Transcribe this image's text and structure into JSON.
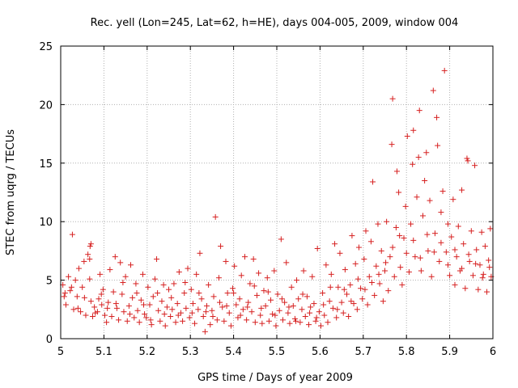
{
  "chart_data": {
    "type": "scatter",
    "title": "Rec. yell (Lon=245, Lat=62, h=HE), days 004-005, 2009, window 004",
    "xlabel": "GPS time / Days of year 2009",
    "ylabel": "STEC from uqrg / TECUs",
    "xlim": [
      5,
      6
    ],
    "ylim": [
      0,
      25
    ],
    "xticks": [
      "5",
      "5.1",
      "5.2",
      "5.3",
      "5.4",
      "5.5",
      "5.6",
      "5.7",
      "5.8",
      "5.9",
      "6"
    ],
    "yticks": [
      "0",
      "5",
      "10",
      "15",
      "20",
      "25"
    ],
    "grid": true,
    "marker": "+",
    "color": "#d62020",
    "series": [
      {
        "values": [
          [
            5.005,
            4.6
          ],
          [
            5.008,
            3.6
          ],
          [
            5.012,
            2.9
          ],
          [
            5.018,
            5.3
          ],
          [
            5.022,
            4.1
          ],
          [
            5.027,
            8.9
          ],
          [
            5.03,
            2.5
          ],
          [
            5.034,
            5.0
          ],
          [
            5.038,
            3.6
          ],
          [
            5.042,
            6.0
          ],
          [
            5.046,
            2.3
          ],
          [
            5.05,
            4.4
          ],
          [
            5.054,
            6.6
          ],
          [
            5.058,
            2.0
          ],
          [
            5.063,
            7.2
          ],
          [
            5.067,
            5.1
          ],
          [
            5.07,
            3.2
          ],
          [
            5.074,
            1.9
          ],
          [
            5.078,
            2.7
          ],
          [
            5.067,
            6.8
          ],
          [
            5.068,
            7.9
          ],
          [
            5.07,
            8.1
          ],
          [
            5.085,
            2.3
          ],
          [
            5.088,
            3.4
          ],
          [
            5.091,
            5.5
          ],
          [
            5.095,
            2.9
          ],
          [
            5.098,
            4.2
          ],
          [
            5.102,
            2.0
          ],
          [
            5.106,
            1.4
          ],
          [
            5.11,
            3.1
          ],
          [
            5.114,
            5.9
          ],
          [
            5.118,
            1.9
          ],
          [
            5.122,
            4.0
          ],
          [
            5.126,
            7.0
          ],
          [
            5.13,
            2.6
          ],
          [
            5.134,
            1.6
          ],
          [
            5.138,
            6.5
          ],
          [
            5.142,
            3.8
          ],
          [
            5.146,
            2.3
          ],
          [
            5.15,
            5.3
          ],
          [
            5.154,
            1.5
          ],
          [
            5.158,
            2.8
          ],
          [
            5.162,
            6.3
          ],
          [
            5.166,
            3.5
          ],
          [
            5.17,
            1.8
          ],
          [
            5.174,
            4.7
          ],
          [
            5.178,
            2.4
          ],
          [
            5.182,
            1.4
          ],
          [
            5.186,
            3.3
          ],
          [
            5.19,
            5.5
          ],
          [
            5.194,
            2.1
          ],
          [
            5.198,
            1.8
          ],
          [
            5.202,
            4.4
          ],
          [
            5.206,
            2.9
          ],
          [
            5.21,
            1.2
          ],
          [
            5.214,
            3.6
          ],
          [
            5.218,
            5.1
          ],
          [
            5.222,
            6.8
          ],
          [
            5.226,
            2.4
          ],
          [
            5.23,
            1.5
          ],
          [
            5.234,
            3.2
          ],
          [
            5.238,
            4.6
          ],
          [
            5.242,
            1.1
          ],
          [
            5.246,
            2.7
          ],
          [
            5.25,
            4.2
          ],
          [
            5.254,
            1.9
          ],
          [
            5.258,
            2.5
          ],
          [
            5.262,
            4.7
          ],
          [
            5.266,
            1.4
          ],
          [
            5.27,
            3.0
          ],
          [
            5.274,
            5.7
          ],
          [
            5.278,
            2.2
          ],
          [
            5.282,
            1.5
          ],
          [
            5.286,
            3.9
          ],
          [
            5.29,
            2.6
          ],
          [
            5.294,
            6.0
          ],
          [
            5.298,
            1.8
          ],
          [
            5.302,
            4.2
          ],
          [
            5.306,
            3.0
          ],
          [
            5.31,
            1.3
          ],
          [
            5.314,
            5.5
          ],
          [
            5.318,
            2.5
          ],
          [
            5.322,
            7.3
          ],
          [
            5.326,
            3.4
          ],
          [
            5.33,
            1.9
          ],
          [
            5.334,
            0.6
          ],
          [
            5.338,
            2.8
          ],
          [
            5.342,
            4.6
          ],
          [
            5.346,
            1.2
          ],
          [
            5.35,
            2.4
          ],
          [
            5.354,
            3.6
          ],
          [
            5.358,
            10.4
          ],
          [
            5.362,
            1.6
          ],
          [
            5.366,
            5.2
          ],
          [
            5.37,
            7.9
          ],
          [
            5.374,
            2.7
          ],
          [
            5.378,
            1.5
          ],
          [
            5.382,
            6.6
          ],
          [
            5.386,
            3.9
          ],
          [
            5.39,
            2.2
          ],
          [
            5.394,
            1.1
          ],
          [
            5.398,
            4.3
          ],
          [
            5.402,
            6.2
          ],
          [
            5.406,
            2.9
          ],
          [
            5.41,
            1.8
          ],
          [
            5.414,
            3.4
          ],
          [
            5.418,
            5.4
          ],
          [
            5.422,
            2.5
          ],
          [
            5.426,
            7.0
          ],
          [
            5.43,
            1.6
          ],
          [
            5.434,
            3.1
          ],
          [
            5.438,
            4.7
          ],
          [
            5.442,
            2.3
          ],
          [
            5.446,
            6.8
          ],
          [
            5.45,
            1.4
          ],
          [
            5.454,
            3.7
          ],
          [
            5.458,
            5.6
          ],
          [
            5.462,
            2.0
          ],
          [
            5.466,
            1.3
          ],
          [
            5.47,
            4.1
          ],
          [
            5.474,
            2.8
          ],
          [
            5.478,
            5.2
          ],
          [
            5.482,
            1.5
          ],
          [
            5.486,
            3.3
          ],
          [
            5.49,
            2.1
          ],
          [
            5.494,
            5.8
          ],
          [
            5.498,
            1.1
          ],
          [
            5.502,
            3.8
          ],
          [
            5.506,
            2.4
          ],
          [
            5.51,
            8.5
          ],
          [
            5.514,
            1.6
          ],
          [
            5.518,
            3.1
          ],
          [
            5.522,
            6.5
          ],
          [
            5.526,
            2.2
          ],
          [
            5.53,
            1.3
          ],
          [
            5.534,
            4.4
          ],
          [
            5.538,
            2.8
          ],
          [
            5.542,
            1.7
          ],
          [
            5.546,
            5.0
          ],
          [
            5.55,
            3.4
          ],
          [
            5.554,
            1.4
          ],
          [
            5.558,
            2.5
          ],
          [
            5.562,
            5.8
          ],
          [
            5.566,
            1.9
          ],
          [
            5.57,
            3.6
          ],
          [
            5.574,
            1.2
          ],
          [
            5.578,
            2.7
          ],
          [
            5.582,
            5.3
          ],
          [
            5.586,
            3.0
          ],
          [
            5.59,
            1.5
          ],
          [
            5.594,
            7.7
          ],
          [
            5.598,
            2.3
          ],
          [
            5.602,
            1.1
          ],
          [
            5.606,
            3.9
          ],
          [
            5.61,
            2.0
          ],
          [
            5.614,
            6.3
          ],
          [
            5.618,
            1.4
          ],
          [
            5.622,
            3.2
          ],
          [
            5.626,
            5.5
          ],
          [
            5.63,
            2.6
          ],
          [
            5.634,
            8.1
          ],
          [
            5.638,
            1.8
          ],
          [
            5.642,
            4.4
          ],
          [
            5.646,
            7.3
          ],
          [
            5.65,
            3.1
          ],
          [
            5.654,
            2.2
          ],
          [
            5.658,
            5.9
          ],
          [
            5.662,
            3.8
          ],
          [
            5.666,
            1.9
          ],
          [
            5.67,
            4.6
          ],
          [
            5.674,
            8.8
          ],
          [
            5.678,
            3.0
          ],
          [
            5.682,
            6.4
          ],
          [
            5.686,
            2.5
          ],
          [
            5.69,
            7.8
          ],
          [
            5.694,
            4.3
          ],
          [
            5.698,
            3.4
          ],
          [
            5.702,
            6.8
          ],
          [
            5.706,
            9.2
          ],
          [
            5.71,
            2.9
          ],
          [
            5.714,
            5.3
          ],
          [
            5.718,
            8.3
          ],
          [
            5.722,
            13.4
          ],
          [
            5.726,
            3.7
          ],
          [
            5.73,
            6.2
          ],
          [
            5.734,
            9.8
          ],
          [
            5.738,
            4.7
          ],
          [
            5.742,
            7.5
          ],
          [
            5.746,
            3.2
          ],
          [
            5.75,
            5.8
          ],
          [
            5.754,
            10.0
          ],
          [
            5.758,
            4.1
          ],
          [
            5.762,
            7.0
          ],
          [
            5.766,
            16.6
          ],
          [
            5.768,
            20.5
          ],
          [
            5.772,
            5.3
          ],
          [
            5.776,
            9.5
          ],
          [
            5.778,
            14.3
          ],
          [
            5.782,
            12.5
          ],
          [
            5.786,
            6.1
          ],
          [
            5.79,
            4.6
          ],
          [
            5.794,
            8.6
          ],
          [
            5.798,
            11.3
          ],
          [
            5.802,
            17.3
          ],
          [
            5.806,
            5.7
          ],
          [
            5.81,
            9.8
          ],
          [
            5.814,
            14.9
          ],
          [
            5.816,
            17.8
          ],
          [
            5.82,
            7.0
          ],
          [
            5.824,
            12.1
          ],
          [
            5.828,
            15.5
          ],
          [
            5.83,
            19.5
          ],
          [
            5.834,
            5.8
          ],
          [
            5.838,
            10.5
          ],
          [
            5.842,
            13.5
          ],
          [
            5.846,
            15.9
          ],
          [
            5.85,
            7.5
          ],
          [
            5.854,
            11.8
          ],
          [
            5.858,
            5.3
          ],
          [
            5.862,
            21.2
          ],
          [
            5.866,
            9.0
          ],
          [
            5.87,
            18.9
          ],
          [
            5.872,
            16.5
          ],
          [
            5.876,
            6.6
          ],
          [
            5.88,
            10.8
          ],
          [
            5.884,
            12.6
          ],
          [
            5.888,
            22.9
          ],
          [
            5.892,
            7.4
          ],
          [
            5.896,
            9.8
          ],
          [
            5.9,
            5.4
          ],
          [
            5.904,
            8.7
          ],
          [
            5.908,
            11.9
          ],
          [
            5.912,
            4.6
          ],
          [
            5.916,
            7.0
          ],
          [
            5.92,
            9.6
          ],
          [
            5.924,
            5.8
          ],
          [
            5.928,
            12.7
          ],
          [
            5.932,
            8.1
          ],
          [
            5.936,
            4.3
          ],
          [
            5.94,
            15.4
          ],
          [
            5.942,
            15.2
          ],
          [
            5.946,
            6.6
          ],
          [
            5.95,
            9.2
          ],
          [
            5.954,
            5.4
          ],
          [
            5.958,
            14.8
          ],
          [
            5.962,
            7.6
          ],
          [
            5.966,
            4.2
          ],
          [
            5.97,
            6.3
          ],
          [
            5.974,
            9.1
          ],
          [
            5.978,
            5.5
          ],
          [
            5.982,
            7.9
          ],
          [
            5.986,
            4.0
          ],
          [
            5.99,
            6.7
          ],
          [
            5.994,
            9.4
          ],
          [
            5.996,
            5.3
          ],
          [
            5.01,
            3.9
          ],
          [
            5.025,
            4.4
          ],
          [
            5.04,
            2.6
          ],
          [
            5.055,
            3.5
          ],
          [
            5.08,
            2.2
          ],
          [
            5.094,
            3.8
          ],
          [
            5.108,
            2.6
          ],
          [
            5.128,
            3.0
          ],
          [
            5.144,
            4.8
          ],
          [
            5.16,
            2.1
          ],
          [
            5.176,
            3.9
          ],
          [
            5.192,
            2.9
          ],
          [
            5.208,
            1.6
          ],
          [
            5.224,
            3.9
          ],
          [
            5.24,
            2.1
          ],
          [
            5.256,
            3.5
          ],
          [
            5.272,
            2.0
          ],
          [
            5.288,
            4.8
          ],
          [
            5.304,
            2.2
          ],
          [
            5.32,
            3.9
          ],
          [
            5.336,
            2.3
          ],
          [
            5.352,
            1.9
          ],
          [
            5.368,
            3.1
          ],
          [
            5.384,
            2.8
          ],
          [
            5.4,
            3.9
          ],
          [
            5.416,
            2.0
          ],
          [
            5.432,
            2.7
          ],
          [
            5.448,
            4.5
          ],
          [
            5.464,
            2.6
          ],
          [
            5.48,
            4.0
          ],
          [
            5.496,
            2.0
          ],
          [
            5.512,
            3.4
          ],
          [
            5.528,
            2.7
          ],
          [
            5.544,
            1.5
          ],
          [
            5.56,
            3.8
          ],
          [
            5.576,
            2.2
          ],
          [
            5.592,
            1.8
          ],
          [
            5.608,
            2.9
          ],
          [
            5.624,
            4.4
          ],
          [
            5.64,
            2.5
          ],
          [
            5.656,
            4.2
          ],
          [
            5.672,
            3.2
          ],
          [
            5.688,
            5.1
          ],
          [
            5.704,
            4.2
          ],
          [
            5.72,
            4.8
          ],
          [
            5.736,
            5.5
          ],
          [
            5.752,
            6.5
          ],
          [
            5.768,
            7.8
          ],
          [
            5.784,
            8.8
          ],
          [
            5.8,
            7.3
          ],
          [
            5.816,
            8.4
          ],
          [
            5.832,
            6.9
          ],
          [
            5.848,
            8.9
          ],
          [
            5.864,
            7.4
          ],
          [
            5.88,
            8.2
          ],
          [
            5.896,
            6.3
          ],
          [
            5.912,
            7.6
          ],
          [
            5.928,
            6.0
          ],
          [
            5.944,
            7.2
          ],
          [
            5.96,
            6.4
          ],
          [
            5.976,
            5.2
          ],
          [
            5.992,
            6.1
          ]
        ]
      }
    ]
  }
}
